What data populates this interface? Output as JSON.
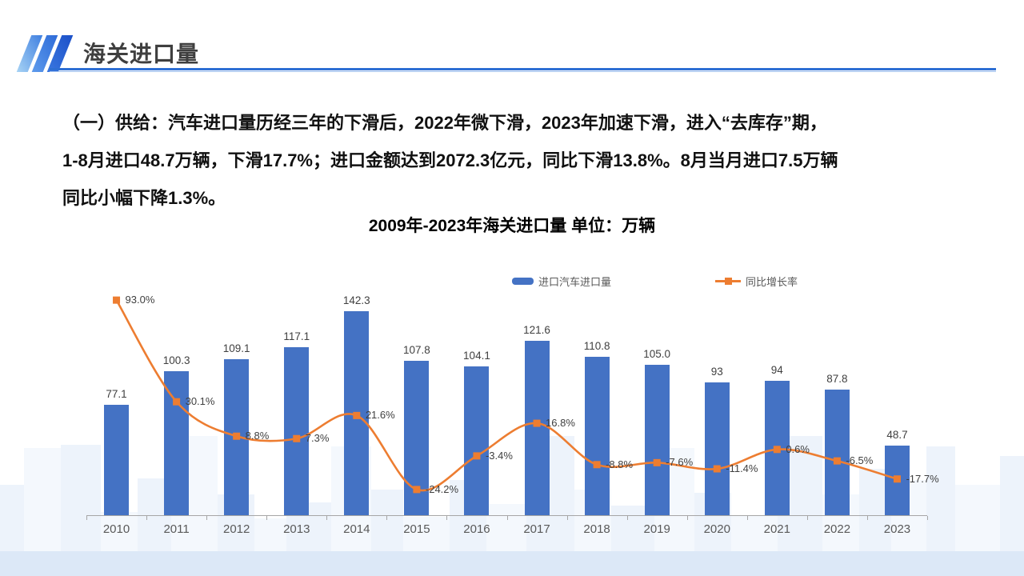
{
  "header": {
    "title": "海关进口量"
  },
  "summary": {
    "lines": [
      "（一）供给：汽车进口量历经三年的下滑后，2022年微下滑，2023年加速下滑，进入“去库存”期，",
      "1-8月进口48.7万辆，下滑17.7%；进口金额达到2072.3亿元，同比下滑13.8%。8月当月进口7.5万辆",
      "同比小幅下降1.3%。"
    ]
  },
  "chart_data": {
    "type": "bar",
    "subtype": "bar+line combo",
    "title": "2009年-2023年海关进口量 单位：万辆",
    "categories": [
      "2010",
      "2011",
      "2012",
      "2013",
      "2014",
      "2015",
      "2016",
      "2017",
      "2018",
      "2019",
      "2020",
      "2021",
      "2022",
      "2023"
    ],
    "series": [
      {
        "name": "进口汽车进口量",
        "type": "bar",
        "color": "#4472C4",
        "values": [
          77.1,
          100.3,
          109.1,
          117.1,
          142.3,
          107.8,
          104.1,
          121.6,
          110.8,
          105.0,
          93,
          94,
          87.8,
          48.7
        ],
        "labels": [
          "77.1",
          "100.3",
          "109.1",
          "117.1",
          "142.3",
          "107.8",
          "104.1",
          "121.6",
          "110.8",
          "105.0",
          "93",
          "94",
          "87.8",
          "48.7"
        ]
      },
      {
        "name": "同比增长率",
        "type": "line",
        "color": "#ED7D31",
        "values": [
          93.0,
          30.1,
          8.8,
          7.3,
          21.6,
          -24.2,
          -3.4,
          16.8,
          -8.8,
          -7.6,
          -11.4,
          0.6,
          -6.5,
          -17.7
        ],
        "labels": [
          "93.0%",
          "30.1%",
          "8.8%",
          "7.3%",
          "21.6%",
          "-24.2%",
          "-3.4%",
          "16.8%",
          "-8.8%",
          "-7.6%",
          "-11.4%",
          "0.6%",
          "-6.5%",
          "-17.7%"
        ]
      }
    ],
    "xlabel": "",
    "ylabel": "",
    "unit": "万辆",
    "grid": false,
    "legend_position": "top-center",
    "axis_color": "#A6A6A6",
    "label_color": "#3f3f3f"
  }
}
